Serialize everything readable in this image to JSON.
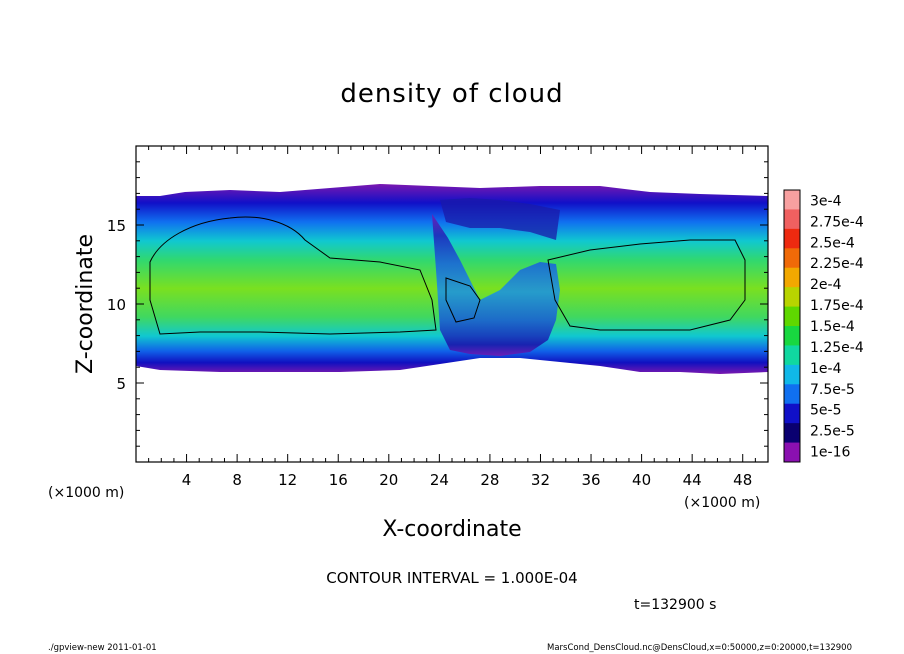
{
  "chart_data": {
    "type": "heatmap",
    "title": "density of cloud",
    "xlabel": "X-coordinate",
    "ylabel": "Z-coordinate",
    "x_unit": "(×1000 m)",
    "x_unit_left": "(×1000 m)",
    "xlim": [
      0,
      50
    ],
    "ylim": [
      0,
      20
    ],
    "x_ticks": [
      4,
      8,
      12,
      16,
      20,
      24,
      28,
      32,
      36,
      40,
      44,
      48
    ],
    "y_ticks": [
      5,
      10,
      15
    ],
    "colorbar": {
      "labels": [
        "3e-4",
        "2.75e-4",
        "2.5e-4",
        "2.25e-4",
        "2e-4",
        "1.75e-4",
        "1.5e-4",
        "1.25e-4",
        "1e-4",
        "7.5e-5",
        "5e-5",
        "2.5e-5",
        "1e-16"
      ],
      "colors": [
        "#f8a0a0",
        "#f06060",
        "#ee2a10",
        "#f06a08",
        "#f2a800",
        "#b8d400",
        "#5fd800",
        "#18d840",
        "#10d8a0",
        "#10b8e8",
        "#1070f0",
        "#1010c8",
        "#0a0070",
        "#8a10b0"
      ]
    },
    "cloud_profile": {
      "base_km": 6.0,
      "top_km": 16.5,
      "dense_core_km": [
        8.5,
        15.5
      ],
      "core_gaps_x_km": [
        [
          23.5,
          33.5
        ]
      ]
    },
    "contour_interval_text": "CONTOUR INTERVAL = 1.000E-04",
    "time_text": "t=132900 s"
  },
  "footer": {
    "left": "./gpview-new   2011-01-01",
    "right": "MarsCond_DensCloud.nc@DensCloud,x=0:50000,z=0:20000,t=132900"
  }
}
